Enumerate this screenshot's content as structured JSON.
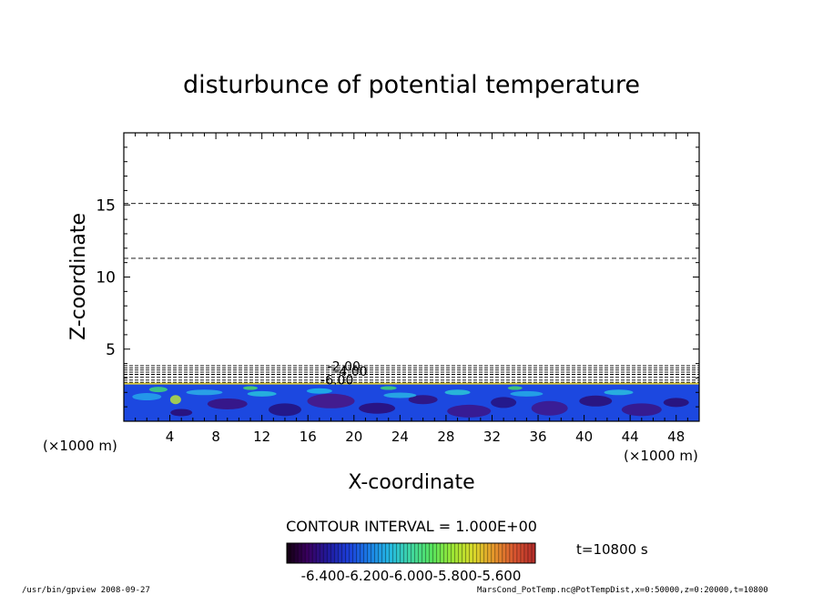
{
  "chart_data": {
    "type": "contour",
    "title": "disturbunce of potential temperature",
    "xlabel": "X-coordinate",
    "ylabel": "Z-coordinate",
    "x_unit": "(×1000 m)",
    "x_unit_right": "(×1000 m)",
    "xlim": [
      0,
      50
    ],
    "ylim": [
      0,
      20
    ],
    "x_ticks": [
      4,
      8,
      12,
      16,
      20,
      24,
      28,
      32,
      36,
      40,
      44,
      48
    ],
    "y_ticks": [
      5,
      10,
      15
    ],
    "contour_interval": "CONTOUR INTERVAL = 1.000E+00",
    "time_label": "t=10800 s",
    "contour_labels": [
      {
        "text": "-2.00",
        "x": 17.7,
        "z": 3.5
      },
      {
        "text": "-4.00",
        "x": 18.3,
        "z": 3.15
      },
      {
        "text": "-6.00",
        "x": 17.1,
        "z": 2.55
      }
    ],
    "dashed_levels": [
      {
        "z": 15.1,
        "name": "upper"
      },
      {
        "z": 11.3,
        "name": "upper"
      },
      {
        "z": 3.85,
        "name": "near-surface"
      },
      {
        "z": 3.7,
        "name": "near-surface"
      },
      {
        "z": 3.55,
        "name": "near-surface"
      },
      {
        "z": 3.4,
        "name": "near-surface"
      },
      {
        "z": 3.25,
        "name": "near-surface"
      },
      {
        "z": 3.05,
        "name": "near-surface"
      },
      {
        "z": 2.85,
        "name": "near-surface"
      },
      {
        "z": 2.7,
        "name": "near-surface"
      }
    ],
    "shaded_layer_top_z": 2.55,
    "colorbar_ticks": [
      "-6.400",
      "-6.200",
      "-6.000",
      "-5.800",
      "-5.600"
    ],
    "colorbar_colors": [
      "#12000f",
      "#3a0060",
      "#201a9e",
      "#1c3fd8",
      "#1a7fe4",
      "#25b9e0",
      "#3fd6a0",
      "#56e25d",
      "#9be534",
      "#d8d92a",
      "#e6962b",
      "#d95530",
      "#b22a28"
    ]
  },
  "footer": {
    "left": "/usr/bin/gpview   2008-09-27",
    "right": "MarsCond_PotTemp.nc@PotTempDist,x=0:50000,z=0:20000,t=10800"
  }
}
